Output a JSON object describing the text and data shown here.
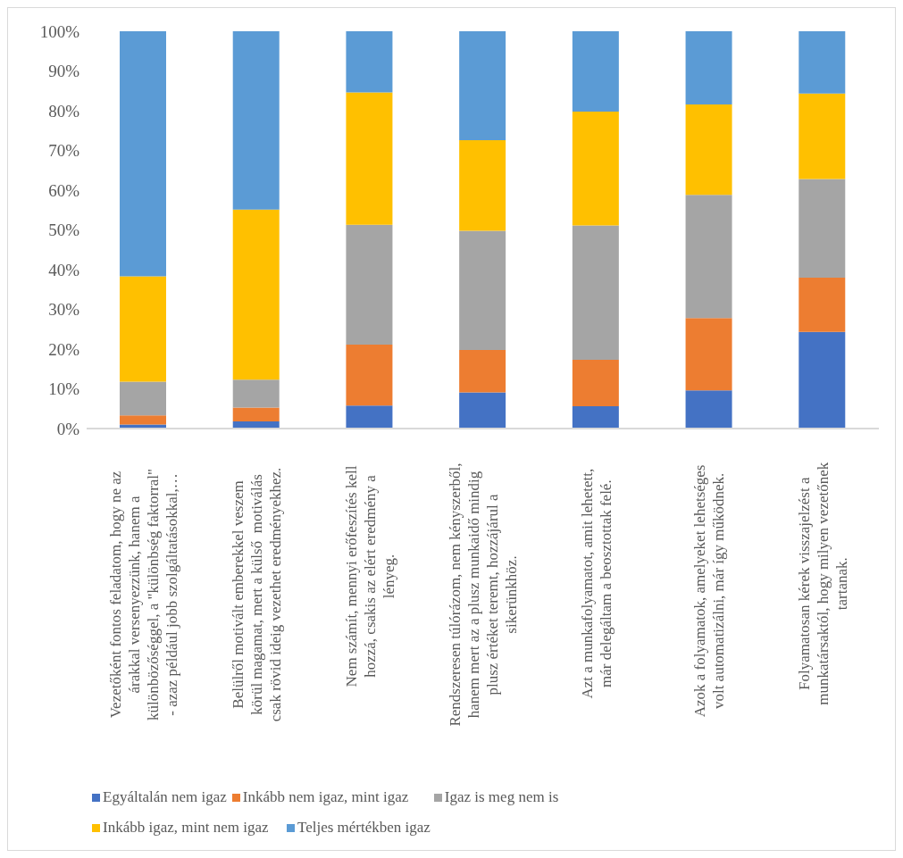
{
  "chart_data": {
    "type": "bar",
    "stacked": true,
    "categories": [
      "Vezetőként fontos feladatom, hogy ne az árakkal versenyezzünk, hanem a különbözőséggel, a \"különbség faktorral\" - azaz például jobb szolgáltatásokkal,…",
      "Belülről motivált emberekkel veszem körül magamat, mert a külső  motiválás csak rövid ideig vezethet eredményekhez.",
      "Nem számít, mennyi erőfeszítés kell hozzá, csakis az elért eredmény a lényeg.",
      "Rendszeresen túlórázom, nem kényszerből, hanem mert az a plusz munkaidő mindig plusz értéket teremt, hozzájárul a sikerünkhöz.",
      "Azt a munkafolyamatot, amit lehetett, már delegáltam a beosztottak felé.",
      "Azok a folyamatok, amelyeket lehetséges volt automatizálni, már így működnek.",
      "Folyamatosan kérek visszajelzést a munkatársaktól, hogy milyen vezetőnek tartanak."
    ],
    "series": [
      {
        "name": "Egyáltalán nem igaz",
        "color": "#4472c4",
        "values": [
          1,
          1.8,
          5.8,
          9.1,
          5.6,
          9.6,
          24.3
        ]
      },
      {
        "name": "Inkább nem igaz, mint igaz",
        "color": "#ed7d31",
        "values": [
          2.3,
          3.5,
          15.3,
          10.7,
          11.7,
          18.2,
          13.7
        ]
      },
      {
        "name": "Igaz is meg nem is",
        "color": "#a5a5a5",
        "values": [
          8.5,
          7,
          30.2,
          30,
          33.8,
          31,
          24.8
        ]
      },
      {
        "name": "Inkább igaz, mint nem igaz",
        "color": "#ffc000",
        "values": [
          26.5,
          42.8,
          33.3,
          22.8,
          28.7,
          22.8,
          21.5
        ]
      },
      {
        "name": "Teljes mértékben igaz",
        "color": "#5b9bd5",
        "values": [
          61.7,
          44.9,
          15.4,
          27.4,
          20.2,
          18.4,
          15.7
        ]
      }
    ],
    "ylim": [
      0,
      100
    ],
    "yticks": [
      {
        "value": 0,
        "label": "0%"
      },
      {
        "value": 10,
        "label": "10%"
      },
      {
        "value": 20,
        "label": "20%"
      },
      {
        "value": 30,
        "label": "30%"
      },
      {
        "value": 40,
        "label": "40%"
      },
      {
        "value": 50,
        "label": "50%"
      },
      {
        "value": 60,
        "label": "60%"
      },
      {
        "value": 70,
        "label": "70%"
      },
      {
        "value": 80,
        "label": "80%"
      },
      {
        "value": 90,
        "label": "90%"
      },
      {
        "value": 100,
        "label": "100%"
      }
    ],
    "grid": false,
    "legend": "bottom"
  }
}
